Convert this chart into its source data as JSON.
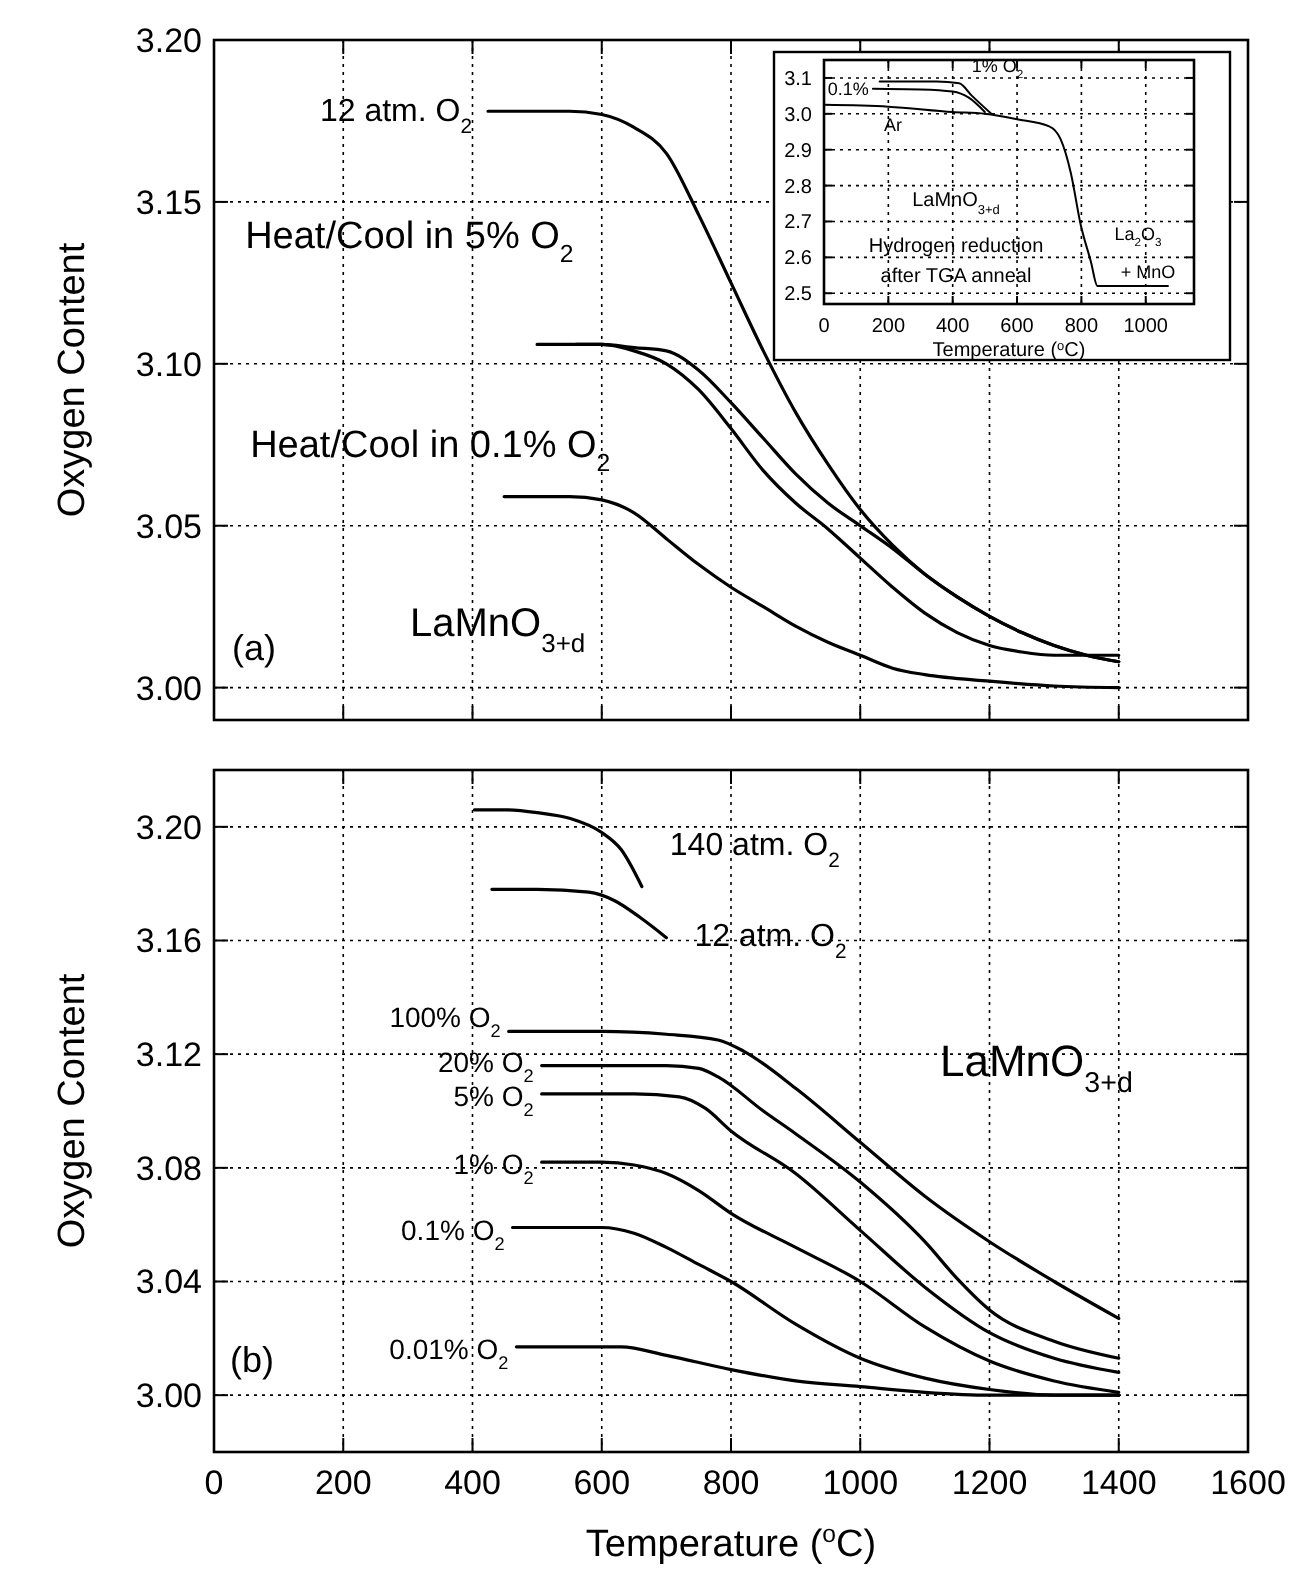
{
  "chart_data": [
    {
      "type": "line",
      "ylabel": "Oxygen Content",
      "xlim": [
        0,
        1600
      ],
      "xticks": [
        0,
        200,
        400,
        600,
        800,
        1000,
        1200,
        1400,
        1600
      ],
      "ylim": [
        2.99,
        3.2
      ],
      "yticks": [
        {
          "value": 3,
          "label": "3.00"
        },
        3.05,
        {
          "value": 3.1,
          "label": "3.10"
        },
        3.15,
        {
          "value": 3.2,
          "label": "3.20"
        }
      ],
      "grid": true,
      "tick_labels": "y",
      "annotations": [
        "(a)",
        "LaMnO$_{3+d}$"
      ],
      "series": [
        {
          "name": "12 atm. O$_{2}$",
          "color": "#000000",
          "x": [
            424,
            500,
            550,
            600,
            650,
            700,
            750,
            800,
            850,
            900,
            950,
            1000,
            1050,
            1100,
            1150,
            1200,
            1250,
            1300,
            1350,
            1400
          ],
          "values": [
            3.178,
            3.178,
            3.178,
            3.177,
            3.173,
            3.165,
            3.146,
            3.125,
            3.104,
            3.085,
            3.069,
            3.055,
            3.044,
            3.035,
            3.028,
            3.022,
            3.017,
            3.013,
            3.01,
            3.008
          ]
        },
        {
          "name": "Heat/Cool in 5% O$_{2}$",
          "color": "#000000",
          "x": [
            500,
            600,
            650,
            700,
            750,
            800,
            850,
            900,
            950,
            1000,
            1050,
            1100,
            1150,
            1200,
            1250,
            1300,
            1350,
            1400
          ],
          "values": [
            3.106,
            3.106,
            3.105,
            3.104,
            3.098,
            3.088,
            3.077,
            3.066,
            3.057,
            3.05,
            3.043,
            3.035,
            3.028,
            3.022,
            3.017,
            3.013,
            3.01,
            3.008
          ]
        },
        {
          "color": "#000000",
          "x": [
            560,
            600,
            650,
            700,
            750,
            800,
            850,
            900,
            950,
            1000,
            1050,
            1100,
            1150,
            1200,
            1250,
            1300,
            1350,
            1400
          ],
          "values": [
            3.106,
            3.106,
            3.104,
            3.1,
            3.092,
            3.08,
            3.067,
            3.057,
            3.049,
            3.04,
            3.031,
            3.023,
            3.017,
            3.013,
            3.011,
            3.01,
            3.01,
            3.01
          ]
        },
        {
          "name": "Heat/Cool in 0.1% O$_{2}$",
          "color": "#000000",
          "x": [
            449,
            550,
            600,
            650,
            700,
            750,
            800,
            850,
            900,
            950,
            1000,
            1050,
            1100,
            1200,
            1300,
            1400
          ],
          "values": [
            3.059,
            3.059,
            3.058,
            3.054,
            3.046,
            3.038,
            3.031,
            3.025,
            3.019,
            3.014,
            3.01,
            3.006,
            3.004,
            3.002,
            3.0005,
            3.0
          ]
        }
      ]
    },
    {
      "type": "line",
      "xlabel": "Temperature ($^{o}$C)",
      "xlim": [
        0,
        1150
      ],
      "xticks": [
        0,
        200,
        400,
        600,
        800,
        1000
      ],
      "ylim": [
        2.47,
        3.15
      ],
      "yticks": [
        2.5,
        2.6,
        2.7,
        2.8,
        2.9,
        {
          "value": 3,
          "label": "3.0"
        },
        3.1
      ],
      "grid": true,
      "annotations": [
        "LaMnO$_{3+d}$",
        "Hydrogen reduction",
        "after TGA anneal",
        "La$_{2}$O$_{3}$",
        "+ MnO"
      ],
      "series": [
        {
          "name": "1% O$_{2}$",
          "color": "#000000",
          "x": [
            173,
            350,
            420,
            460,
            520
          ],
          "values": [
            3.09,
            3.09,
            3.085,
            3.05,
            3.0
          ]
        },
        {
          "name": "0.1%",
          "color": "#000000",
          "x": [
            152,
            300,
            400,
            450,
            500
          ],
          "values": [
            3.07,
            3.068,
            3.062,
            3.045,
            3.005
          ]
        },
        {
          "name": "Ar",
          "color": "#000000",
          "x": [
            0,
            200,
            400,
            500,
            600,
            700,
            735,
            767,
            798,
            829,
            850,
            900,
            1069
          ],
          "values": [
            3.025,
            3.02,
            3.005,
            3.0,
            2.985,
            2.965,
            2.93,
            2.836,
            2.69,
            2.59,
            2.52,
            2.52,
            2.52
          ]
        }
      ]
    },
    {
      "type": "line",
      "xlabel": "Temperature  ($^{o}$C)",
      "ylabel": "Oxygen Content",
      "xlim": [
        0,
        1600
      ],
      "xticks": [
        0,
        200,
        400,
        600,
        800,
        1000,
        1200,
        1400,
        1600
      ],
      "ylim": [
        2.98,
        3.22
      ],
      "yticks": [
        {
          "value": 3,
          "label": "3.00"
        },
        3.04,
        3.08,
        3.12,
        3.16,
        {
          "value": 3.2,
          "label": "3.20"
        }
      ],
      "grid": true,
      "annotations": [
        "(b)",
        "LaMnO$_{3+d}$"
      ],
      "series": [
        {
          "name": "140 atm. O$_{2}$",
          "color": "#000000",
          "x": [
            403,
            450,
            500,
            550,
            600,
            630,
            662
          ],
          "values": [
            3.206,
            3.206,
            3.205,
            3.203,
            3.198,
            3.192,
            3.179
          ]
        },
        {
          "name": "12 atm. O$_{2}$",
          "color": "#000000",
          "x": [
            430,
            500,
            580,
            620,
            660,
            700
          ],
          "values": [
            3.178,
            3.178,
            3.177,
            3.174,
            3.168,
            3.161
          ]
        },
        {
          "name": "100% O$_{2}$",
          "color": "#000000",
          "x": [
            456,
            600,
            700,
            780,
            820,
            900,
            1000,
            1100,
            1200,
            1300,
            1400
          ],
          "values": [
            3.128,
            3.128,
            3.127,
            3.125,
            3.121,
            3.108,
            3.089,
            3.07,
            3.054,
            3.04,
            3.027
          ]
        },
        {
          "name": "20% O$_{2}$",
          "color": "#000000",
          "x": [
            507,
            700,
            750,
            780,
            850,
            900,
            1000,
            1100,
            1150,
            1200,
            1300,
            1400
          ],
          "values": [
            3.116,
            3.116,
            3.115,
            3.112,
            3.1,
            3.092,
            3.075,
            3.054,
            3.041,
            3.03,
            3.019,
            3.013
          ]
        },
        {
          "name": "5% O$_{2}$",
          "color": "#000000",
          "x": [
            507,
            650,
            720,
            760,
            800,
            900,
            1000,
            1100,
            1200,
            1300,
            1400
          ],
          "values": [
            3.106,
            3.106,
            3.105,
            3.101,
            3.093,
            3.078,
            3.058,
            3.038,
            3.022,
            3.013,
            3.008
          ]
        },
        {
          "name": "1% O$_{2}$",
          "color": "#000000",
          "x": [
            507,
            600,
            650,
            700,
            750,
            800,
            900,
            1000,
            1100,
            1200,
            1300,
            1400
          ],
          "values": [
            3.082,
            3.082,
            3.081,
            3.078,
            3.072,
            3.064,
            3.052,
            3.04,
            3.024,
            3.012,
            3.005,
            3.001
          ]
        },
        {
          "name": "0.1% O$_{2}$",
          "color": "#000000",
          "x": [
            462,
            600,
            650,
            700,
            750,
            800,
            900,
            1000,
            1100,
            1200,
            1300,
            1400
          ],
          "values": [
            3.059,
            3.059,
            3.057,
            3.052,
            3.046,
            3.04,
            3.025,
            3.013,
            3.006,
            3.002,
            3.0,
            3.0
          ]
        },
        {
          "name": "0.01% O$_{2}$",
          "color": "#000000",
          "x": [
            468,
            550,
            630,
            700,
            800,
            900,
            1000,
            1100,
            1200,
            1400
          ],
          "values": [
            3.017,
            3.017,
            3.017,
            3.014,
            3.009,
            3.005,
            3.003,
            3.001,
            3.0,
            3.0
          ]
        }
      ]
    }
  ]
}
